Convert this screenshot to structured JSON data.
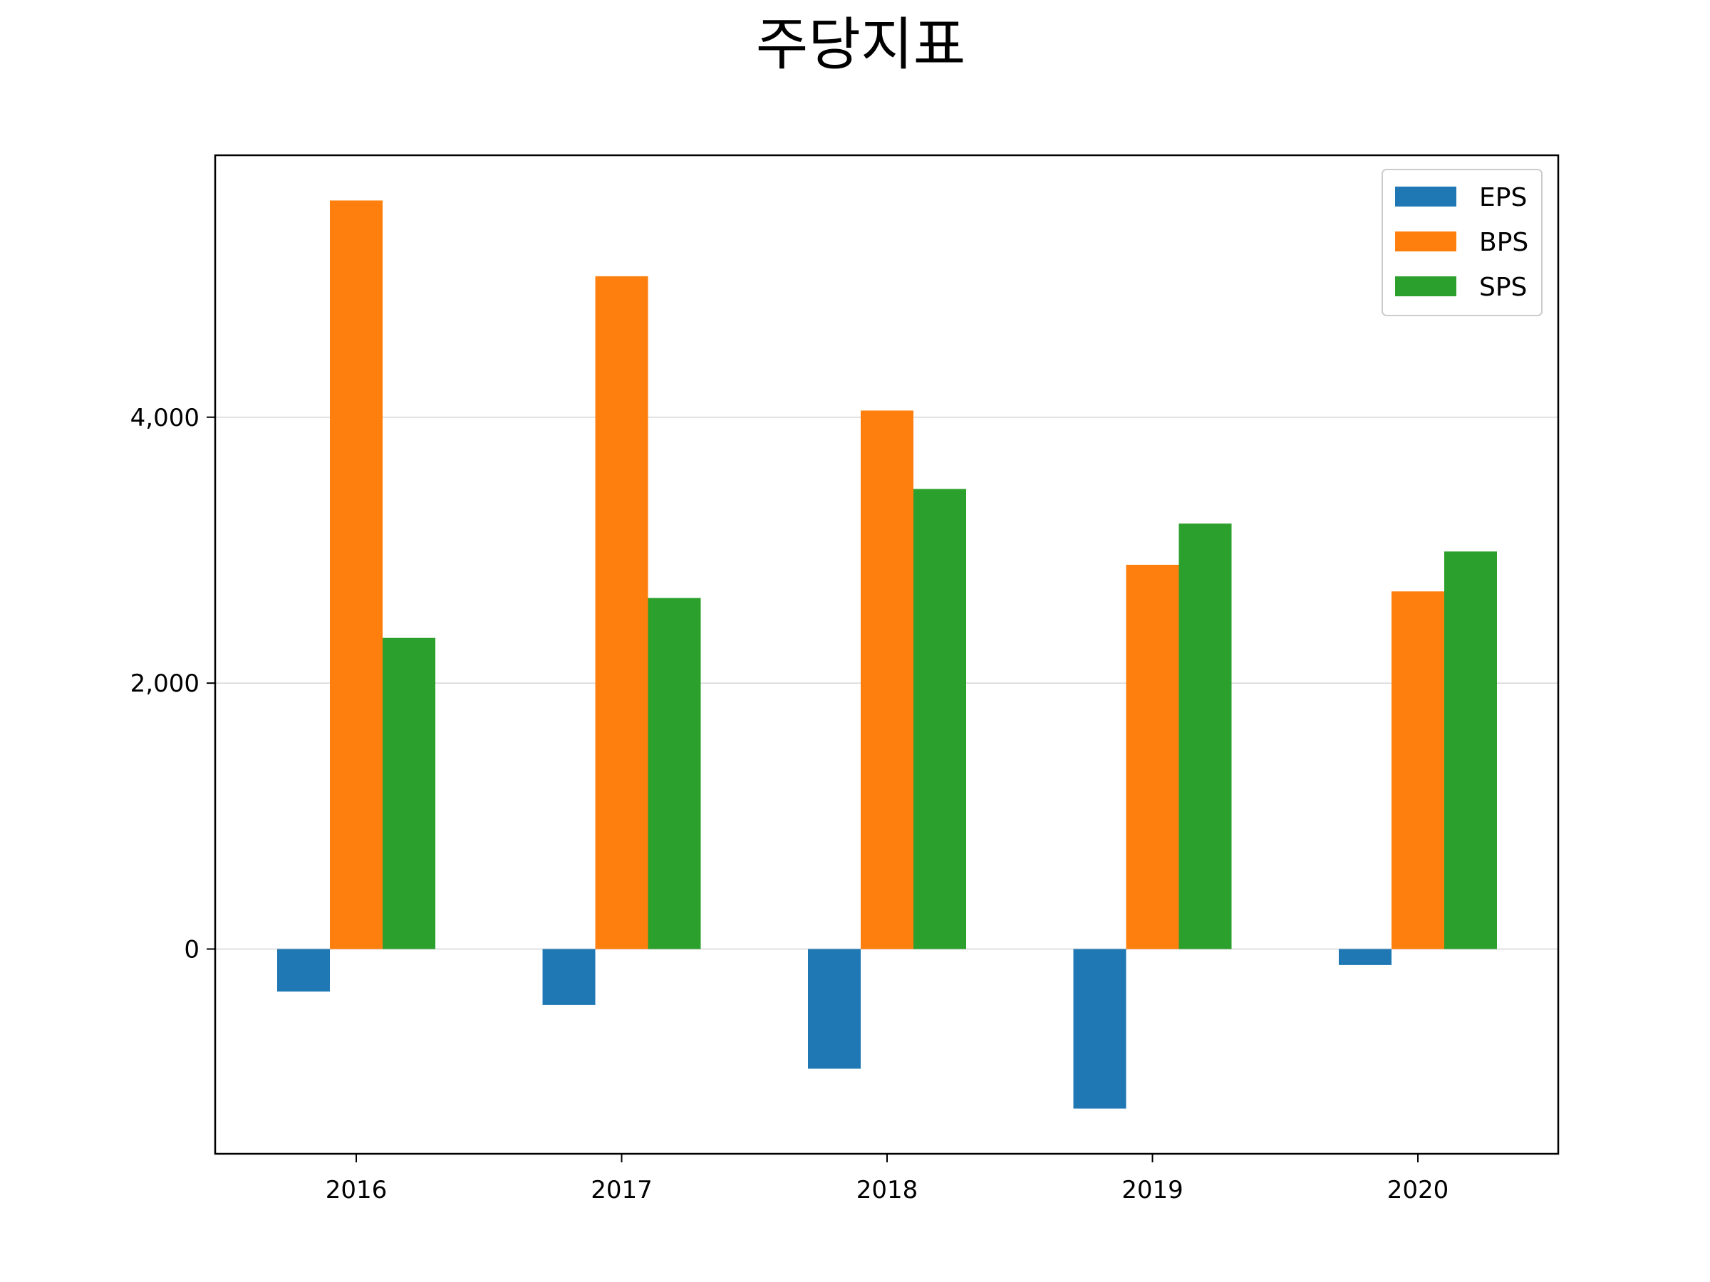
{
  "chart_data": {
    "type": "bar",
    "title": "주당지표",
    "xlabel": "",
    "ylabel": "",
    "categories": [
      "2016",
      "2017",
      "2018",
      "2019",
      "2020"
    ],
    "series": [
      {
        "name": "EPS",
        "color": "#1f77b4",
        "values": [
          -320,
          -420,
          -900,
          -1200,
          -120
        ]
      },
      {
        "name": "BPS",
        "color": "#ff7f0e",
        "values": [
          5630,
          5060,
          4050,
          2890,
          2690
        ]
      },
      {
        "name": "SPS",
        "color": "#2ca02c",
        "values": [
          2340,
          2640,
          3460,
          3200,
          2990
        ]
      }
    ],
    "ylim": [
      -1540,
      5970
    ],
    "yticks": [
      0,
      2000,
      4000
    ],
    "ytick_labels": [
      "0",
      "2,000",
      "4,000"
    ],
    "grid": "y",
    "legend_position": "top-right"
  }
}
